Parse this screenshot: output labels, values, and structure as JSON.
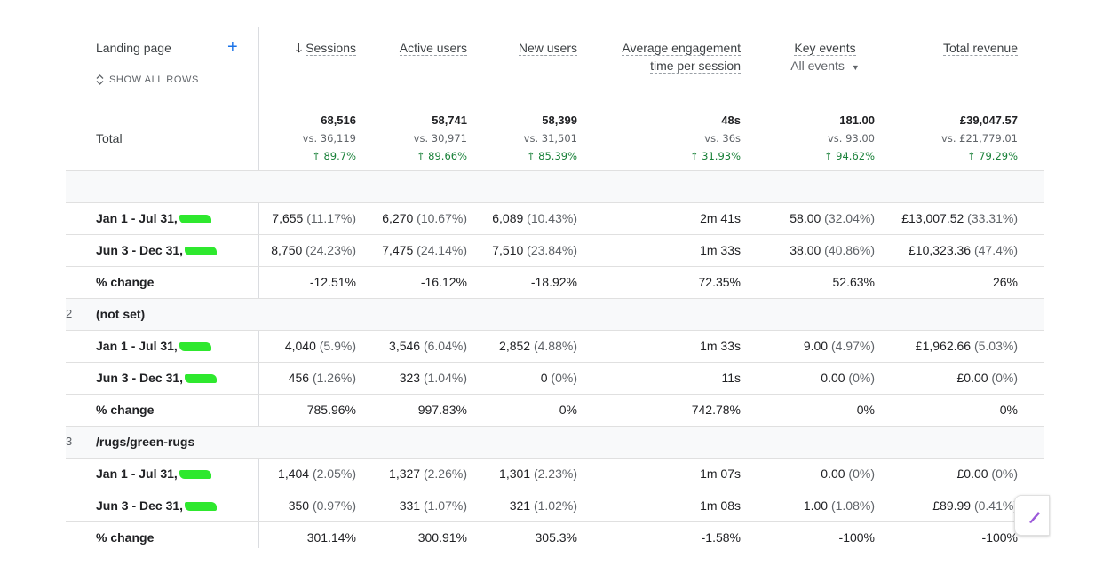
{
  "header": {
    "dimension": "Landing page",
    "add_icon": "plus-icon",
    "show_all_rows": "SHOW ALL ROWS",
    "columns": [
      {
        "label": "Sessions",
        "sorted": true,
        "sort_icon": "arrow-down-icon"
      },
      {
        "label": "Active users"
      },
      {
        "label": "New users"
      },
      {
        "label": "Average engagement",
        "label2": "time per session"
      },
      {
        "label": "Key events",
        "sub": "All events"
      },
      {
        "label": "Total revenue"
      }
    ]
  },
  "total": {
    "label": "Total",
    "cells": [
      {
        "value": "68,516",
        "vs": "vs. 36,119",
        "pct": "↑ 89.7%"
      },
      {
        "value": "58,741",
        "vs": "vs. 30,971",
        "pct": "↑ 89.66%"
      },
      {
        "value": "58,399",
        "vs": "vs. 31,501",
        "pct": "↑ 85.39%"
      },
      {
        "value": "48s",
        "vs": "vs. 36s",
        "pct": "↑ 31.93%"
      },
      {
        "value": "181.00",
        "vs": "vs. 93.00",
        "pct": "↑ 94.62%"
      },
      {
        "value": "£39,047.57",
        "vs": "vs. £21,779.01",
        "pct": "↑ 79.29%"
      }
    ]
  },
  "rows": [
    {
      "type": "group",
      "index": "",
      "label": ""
    },
    {
      "type": "data",
      "label": "Jan 1 - Jul 31,",
      "redacted": true,
      "cells": [
        [
          "7,655",
          " (11.17%)"
        ],
        [
          "6,270",
          " (10.67%)"
        ],
        [
          "6,089",
          " (10.43%)"
        ],
        [
          "2m 41s",
          ""
        ],
        [
          "58.00",
          " (32.04%)"
        ],
        [
          "£13,007.52",
          " (33.31%)"
        ]
      ]
    },
    {
      "type": "data",
      "label": "Jun 3 - Dec 31,",
      "redacted": true,
      "cells": [
        [
          "8,750",
          " (24.23%)"
        ],
        [
          "7,475",
          " (24.14%)"
        ],
        [
          "7,510",
          " (23.84%)"
        ],
        [
          "1m 33s",
          ""
        ],
        [
          "38.00",
          " (40.86%)"
        ],
        [
          "£10,323.36",
          " (47.4%)"
        ]
      ]
    },
    {
      "type": "data",
      "label": "% change",
      "redacted": false,
      "cells": [
        [
          "-12.51%",
          ""
        ],
        [
          "-16.12%",
          ""
        ],
        [
          "-18.92%",
          ""
        ],
        [
          "72.35%",
          ""
        ],
        [
          "52.63%",
          ""
        ],
        [
          "26%",
          ""
        ]
      ]
    },
    {
      "type": "group",
      "index": "2",
      "label": "(not set)"
    },
    {
      "type": "data",
      "label": "Jan 1 - Jul 31,",
      "redacted": true,
      "cells": [
        [
          "4,040",
          " (5.9%)"
        ],
        [
          "3,546",
          " (6.04%)"
        ],
        [
          "2,852",
          " (4.88%)"
        ],
        [
          "1m 33s",
          ""
        ],
        [
          "9.00",
          " (4.97%)"
        ],
        [
          "£1,962.66",
          " (5.03%)"
        ]
      ]
    },
    {
      "type": "data",
      "label": "Jun 3 - Dec 31,",
      "redacted": true,
      "cells": [
        [
          "456",
          " (1.26%)"
        ],
        [
          "323",
          " (1.04%)"
        ],
        [
          "0",
          " (0%)"
        ],
        [
          "11s",
          ""
        ],
        [
          "0.00",
          " (0%)"
        ],
        [
          "£0.00",
          " (0%)"
        ]
      ]
    },
    {
      "type": "data",
      "label": "% change",
      "redacted": false,
      "cells": [
        [
          "785.96%",
          ""
        ],
        [
          "997.83%",
          ""
        ],
        [
          "0%",
          ""
        ],
        [
          "742.78%",
          ""
        ],
        [
          "0%",
          ""
        ],
        [
          "0%",
          ""
        ]
      ]
    },
    {
      "type": "group",
      "index": "3",
      "label": "/rugs/green-rugs"
    },
    {
      "type": "data",
      "label": "Jan 1 - Jul 31,",
      "redacted": true,
      "cells": [
        [
          "1,404",
          " (2.05%)"
        ],
        [
          "1,327",
          " (2.26%)"
        ],
        [
          "1,301",
          " (2.23%)"
        ],
        [
          "1m 07s",
          ""
        ],
        [
          "0.00",
          " (0%)"
        ],
        [
          "£0.00",
          " (0%)"
        ]
      ]
    },
    {
      "type": "data",
      "label": "Jun 3 - Dec 31,",
      "redacted": true,
      "cells": [
        [
          "350",
          " (0.97%)"
        ],
        [
          "331",
          " (1.07%)"
        ],
        [
          "321",
          " (1.02%)"
        ],
        [
          "1m 08s",
          ""
        ],
        [
          "1.00",
          " (1.08%)"
        ],
        [
          "£89.99",
          " (0.41%)"
        ]
      ]
    },
    {
      "type": "data",
      "label": "% change",
      "redacted": false,
      "cells": [
        [
          "301.14%",
          ""
        ],
        [
          "300.91%",
          ""
        ],
        [
          "305.3%",
          ""
        ],
        [
          "-1.58%",
          ""
        ],
        [
          "-100%",
          ""
        ],
        [
          "-100%",
          ""
        ]
      ]
    }
  ],
  "fab_icon": "edit-pen-icon",
  "colors": {
    "accent": "#1a73e8",
    "positive": "#188038",
    "redaction": "#2ee82e",
    "fab_pen": "#9b59d9"
  }
}
